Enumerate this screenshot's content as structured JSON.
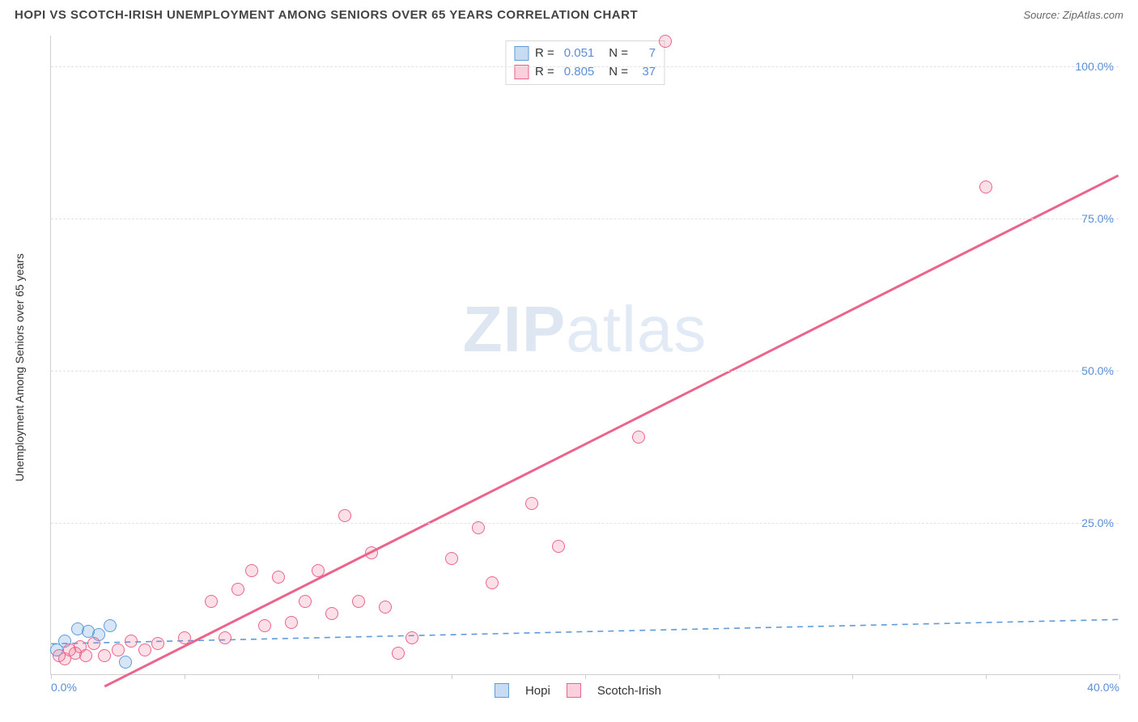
{
  "header": {
    "title": "HOPI VS SCOTCH-IRISH UNEMPLOYMENT AMONG SENIORS OVER 65 YEARS CORRELATION CHART",
    "source_prefix": "Source: ",
    "source": "ZipAtlas.com"
  },
  "axes": {
    "ylabel": "Unemployment Among Seniors over 65 years",
    "xmin": 0,
    "xmax": 40,
    "ymin": 0,
    "ymax": 105,
    "yticks": [
      {
        "v": 25,
        "label": "25.0%"
      },
      {
        "v": 50,
        "label": "50.0%"
      },
      {
        "v": 75,
        "label": "75.0%"
      },
      {
        "v": 100,
        "label": "100.0%"
      }
    ],
    "xticks": [
      0,
      5,
      10,
      15,
      20,
      25,
      30,
      35,
      40
    ],
    "xlabel_first": "0.0%",
    "xlabel_last": "40.0%"
  },
  "watermark": {
    "bold": "ZIP",
    "rest": "atlas"
  },
  "series": [
    {
      "key": "a",
      "name": "Hopi",
      "color": "#5f9bdc",
      "R": "0.051",
      "N": "7",
      "line": {
        "x1": 0,
        "y1": 5.0,
        "x2": 40,
        "y2": 9.0,
        "dashed": true,
        "width": 1.6
      },
      "points": [
        {
          "x": 0.2,
          "y": 4.0
        },
        {
          "x": 0.5,
          "y": 5.5
        },
        {
          "x": 1.0,
          "y": 7.5
        },
        {
          "x": 1.4,
          "y": 7.0
        },
        {
          "x": 1.8,
          "y": 6.5
        },
        {
          "x": 2.2,
          "y": 8.0
        },
        {
          "x": 2.8,
          "y": 2.0
        }
      ]
    },
    {
      "key": "b",
      "name": "Scotch-Irish",
      "color": "#eb648c",
      "R": "0.805",
      "N": "37",
      "line": {
        "x1": 2.0,
        "y1": -2.0,
        "x2": 40,
        "y2": 82.0,
        "dashed": false,
        "width": 3
      },
      "points": [
        {
          "x": 0.3,
          "y": 3.0
        },
        {
          "x": 0.5,
          "y": 2.5
        },
        {
          "x": 0.7,
          "y": 4.0
        },
        {
          "x": 0.9,
          "y": 3.5
        },
        {
          "x": 1.1,
          "y": 4.5
        },
        {
          "x": 1.3,
          "y": 3.0
        },
        {
          "x": 1.6,
          "y": 5.0
        },
        {
          "x": 2.0,
          "y": 3.0
        },
        {
          "x": 2.5,
          "y": 4.0
        },
        {
          "x": 3.0,
          "y": 5.5
        },
        {
          "x": 3.5,
          "y": 4.0
        },
        {
          "x": 4.0,
          "y": 5.0
        },
        {
          "x": 5.0,
          "y": 6.0
        },
        {
          "x": 6.0,
          "y": 12.0
        },
        {
          "x": 6.5,
          "y": 6.0
        },
        {
          "x": 7.0,
          "y": 14.0
        },
        {
          "x": 7.5,
          "y": 17.0
        },
        {
          "x": 8.0,
          "y": 8.0
        },
        {
          "x": 8.5,
          "y": 16.0
        },
        {
          "x": 9.0,
          "y": 8.5
        },
        {
          "x": 9.5,
          "y": 12.0
        },
        {
          "x": 10.0,
          "y": 17.0
        },
        {
          "x": 10.5,
          "y": 10.0
        },
        {
          "x": 11.0,
          "y": 26.0
        },
        {
          "x": 11.5,
          "y": 12.0
        },
        {
          "x": 12.0,
          "y": 20.0
        },
        {
          "x": 12.5,
          "y": 11.0
        },
        {
          "x": 13.0,
          "y": 3.5
        },
        {
          "x": 13.5,
          "y": 6.0
        },
        {
          "x": 15.0,
          "y": 19.0
        },
        {
          "x": 16.0,
          "y": 24.0
        },
        {
          "x": 16.5,
          "y": 15.0
        },
        {
          "x": 18.0,
          "y": 28.0
        },
        {
          "x": 19.0,
          "y": 21.0
        },
        {
          "x": 22.0,
          "y": 39.0
        },
        {
          "x": 23.0,
          "y": 104.0
        },
        {
          "x": 35.0,
          "y": 80.0
        }
      ]
    }
  ],
  "legend_bottom": [
    "Hopi",
    "Scotch-Irish"
  ],
  "legend_top_labels": {
    "R": "R =",
    "N": "N ="
  }
}
